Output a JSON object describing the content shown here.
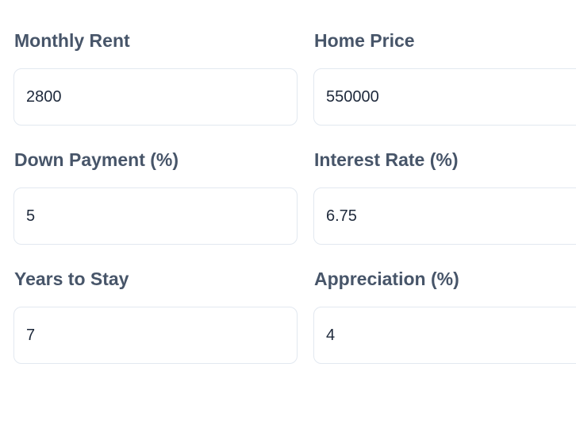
{
  "form": {
    "fields": [
      {
        "label": "Monthly Rent",
        "value": "2800"
      },
      {
        "label": "Home Price",
        "value": "550000"
      },
      {
        "label": "Down Payment (%)",
        "value": "5"
      },
      {
        "label": "Interest Rate (%)",
        "value": "6.75"
      },
      {
        "label": "Years to Stay",
        "value": "7"
      },
      {
        "label": "Appreciation (%)",
        "value": "4"
      }
    ],
    "colors": {
      "background": "#ffffff",
      "label_text": "#475569",
      "input_text": "#1e293b",
      "input_border": "#e2e8f0"
    }
  }
}
